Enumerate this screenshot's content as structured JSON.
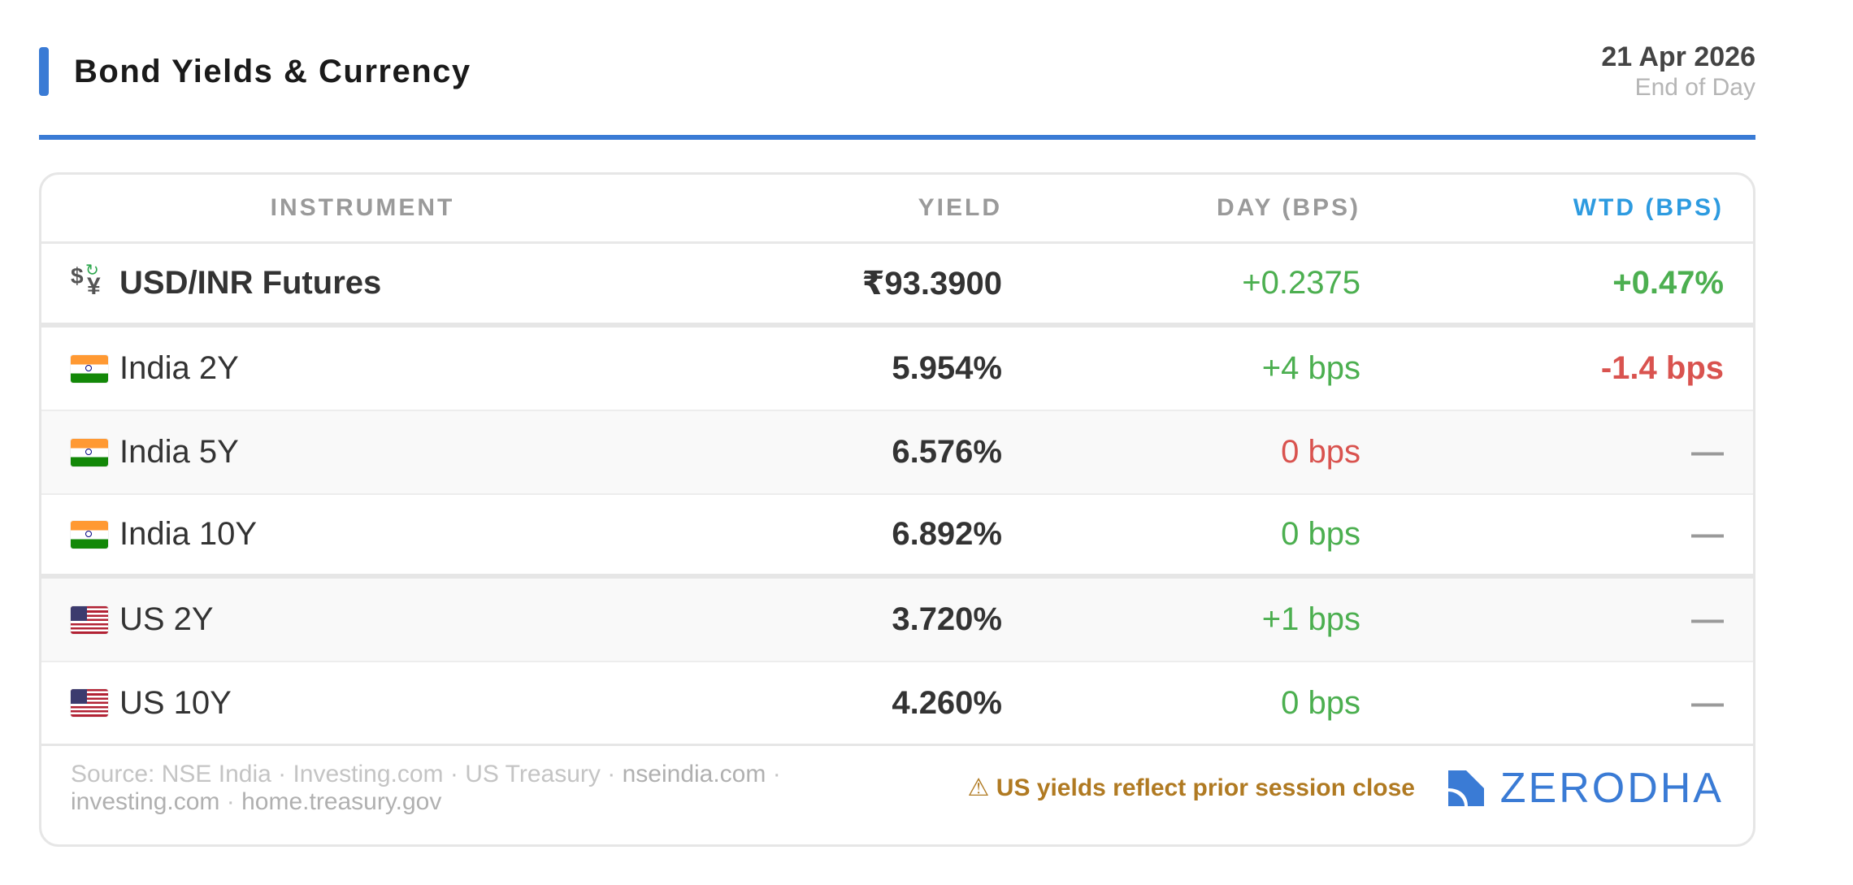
{
  "header": {
    "title": "Bond Yields & Currency",
    "date": "21 Apr 2026",
    "session": "End of Day"
  },
  "table": {
    "columns": {
      "instrument": "INSTRUMENT",
      "yield": "YIELD",
      "day": "DAY (BPS)",
      "wtd": "WTD (BPS)"
    },
    "rows": [
      {
        "icon": "currency-exchange-icon",
        "name": "USD/INR Futures",
        "yield": "₹93.3900",
        "day": "+0.2375",
        "wtd": "+0.47%"
      },
      {
        "icon": "india-flag-icon",
        "name": "India 2Y",
        "yield": "5.954%",
        "day": "+4 bps",
        "wtd": "-1.4 bps"
      },
      {
        "icon": "india-flag-icon",
        "name": "India 5Y",
        "yield": "6.576%",
        "day": "0 bps",
        "wtd": "—"
      },
      {
        "icon": "india-flag-icon",
        "name": "India 10Y",
        "yield": "6.892%",
        "day": "0 bps",
        "wtd": "—"
      },
      {
        "icon": "us-flag-icon",
        "name": "US 2Y",
        "yield": "3.720%",
        "day": "+1 bps",
        "wtd": "—"
      },
      {
        "icon": "us-flag-icon",
        "name": "US 10Y",
        "yield": "4.260%",
        "day": "0 bps",
        "wtd": "—"
      }
    ]
  },
  "colors": {
    "accent": "#3a7bd5",
    "wtd_header": "#2d9be0",
    "positive": "#4caf50",
    "negative": "#d9534f",
    "warning": "#b07a22"
  },
  "footer": {
    "source_prefix": "Source: NSE India · Investing.com · US Treasury ·",
    "source_link_1": "nseindia.com",
    "source_sep_1": "·",
    "source_link_2": "investing.com",
    "source_sep_2": "·",
    "source_link_3": "home.treasury.gov",
    "warning_icon": "warning-icon",
    "warning_glyph": "⚠",
    "warning_text": "US yields reflect prior session close",
    "brand": "ZERODHA"
  }
}
